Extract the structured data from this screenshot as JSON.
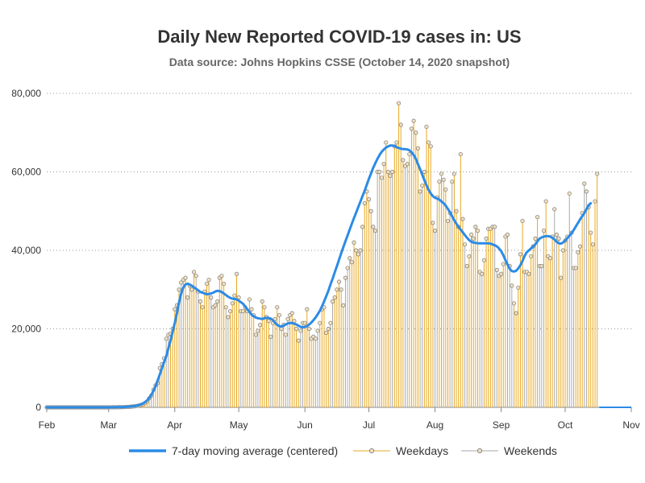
{
  "chart_data": {
    "type": "bar",
    "title": "Daily New Reported COVID-19 cases in: US",
    "subtitle": "Data source: Johns Hopkins CSSE (October 14, 2020 snapshot)",
    "xlabel": "",
    "ylabel": "",
    "start_date": "2020-01-22",
    "end_date": "2020-10-13",
    "xlim": [
      "2020-02-01",
      "2020-11-01"
    ],
    "ylim": [
      0,
      80000
    ],
    "y_ticks": [
      0,
      20000,
      40000,
      60000,
      80000
    ],
    "y_tick_labels": [
      "0",
      "20,000",
      "40,000",
      "60,000",
      "80,000"
    ],
    "x_ticks": [
      "2020-02-01",
      "2020-03-01",
      "2020-04-01",
      "2020-05-01",
      "2020-06-01",
      "2020-07-01",
      "2020-08-01",
      "2020-09-01",
      "2020-10-01",
      "2020-11-01"
    ],
    "x_tick_labels": [
      "Feb",
      "Mar",
      "Apr",
      "May",
      "Jun",
      "Jul",
      "Aug",
      "Sep",
      "Oct",
      "Nov"
    ],
    "grid": "horizontal dotted",
    "legend_position": "bottom",
    "colors": {
      "moving_average": "#2b8be6",
      "weekdays": "#e8a820",
      "weekends": "#aaaaaa",
      "marker_face": "#f4e2c0",
      "marker_edge": "#888888"
    },
    "series": [
      {
        "name": "7-day moving average (centered)",
        "type": "line"
      },
      {
        "name": "Weekdays",
        "type": "needle"
      },
      {
        "name": "Weekends",
        "type": "needle"
      }
    ],
    "daily_values": [
      0,
      0,
      0,
      0,
      0,
      0,
      0,
      0,
      0,
      0,
      0,
      0,
      0,
      0,
      0,
      0,
      0,
      0,
      0,
      0,
      0,
      0,
      0,
      0,
      0,
      0,
      0,
      0,
      0,
      0,
      0,
      0,
      0,
      0,
      0,
      0,
      0,
      0,
      0,
      0,
      10,
      20,
      30,
      20,
      50,
      50,
      60,
      100,
      120,
      150,
      200,
      250,
      350,
      450,
      600,
      800,
      1100,
      1500,
      2300,
      3000,
      4500,
      5600,
      6200,
      10000,
      11000,
      12500,
      17500,
      18500,
      18800,
      20000,
      25000,
      26000,
      30000,
      31800,
      32500,
      33000,
      28000,
      31000,
      30000,
      34500,
      33500,
      29500,
      27000,
      25500,
      29500,
      31500,
      32500,
      28000,
      25500,
      26000,
      27000,
      33000,
      33500,
      31500,
      25500,
      23000,
      24500,
      26500,
      28500,
      34000,
      28000,
      24500,
      24500,
      25500,
      24500,
      27500,
      25000,
      23500,
      18500,
      19500,
      21000,
      27000,
      25500,
      23000,
      22000,
      18000,
      21500,
      22500,
      25500,
      23500,
      20000,
      21000,
      18500,
      22500,
      23500,
      24000,
      22000,
      20000,
      17000,
      19500,
      21500,
      21500,
      25000,
      20000,
      17500,
      18000,
      17500,
      19500,
      21500,
      25000,
      25500,
      19000,
      20000,
      21500,
      27000,
      28000,
      30000,
      32000,
      30000,
      26000,
      33000,
      35500,
      38000,
      37000,
      42000,
      40000,
      39000,
      40000,
      46000,
      52000,
      55000,
      53000,
      50000,
      46000,
      45000,
      60000,
      60000,
      58500,
      62000,
      67500,
      60000,
      59000,
      60000,
      66500,
      67500,
      77500,
      72000,
      63000,
      61500,
      62000,
      64500,
      71000,
      73000,
      70000,
      66000,
      55000,
      56500,
      60000,
      71500,
      67500,
      66500,
      47000,
      45000,
      53500,
      57500,
      59500,
      58000,
      55500,
      47500,
      49500,
      57500,
      59500,
      50000,
      46000,
      64500,
      48000,
      41500,
      36000,
      38500,
      44000,
      43000,
      46000,
      45000,
      34500,
      34000,
      37500,
      43000,
      45500,
      45500,
      46000,
      46000,
      35000,
      33500,
      34000,
      36500,
      43500,
      44000,
      36000,
      31000,
      26500,
      24000,
      30500,
      39000,
      47500,
      34500,
      34500,
      34000,
      38500,
      41000,
      43000,
      48500,
      36000,
      36000,
      45000,
      52500,
      38500,
      38000,
      43500,
      50500,
      44000,
      43000,
      33000,
      40000,
      42500,
      43500,
      54500,
      44500,
      35500,
      35500,
      39500,
      41000,
      49500,
      57000,
      55000,
      51000,
      44500,
      41500,
      52500,
      59500
    ],
    "moving_average": [
      0,
      0,
      0,
      0,
      0,
      0,
      0,
      0,
      0,
      0,
      0,
      0,
      0,
      0,
      0,
      0,
      0,
      0,
      0,
      0,
      0,
      0,
      0,
      0,
      0,
      0,
      0,
      0,
      0,
      0,
      0,
      0,
      0,
      0,
      0,
      0,
      0,
      0,
      0,
      0,
      20,
      30,
      40,
      50,
      60,
      70,
      90,
      110,
      150,
      190,
      240,
      310,
      420,
      560,
      730,
      950,
      1300,
      1750,
      2400,
      3200,
      4200,
      5400,
      6900,
      8400,
      10000,
      11500,
      13000,
      15000,
      17000,
      19200,
      21500,
      24000,
      26800,
      29000,
      30500,
      31300,
      31500,
      31300,
      31000,
      30600,
      30200,
      29800,
      29400,
      29200,
      29000,
      28800,
      28900,
      29000,
      29200,
      29500,
      29700,
      29600,
      29400,
      29000,
      28600,
      28200,
      27900,
      27700,
      27600,
      27500,
      27200,
      26800,
      26400,
      25700,
      25000,
      24300,
      23600,
      23200,
      22900,
      22700,
      22600,
      22500,
      22700,
      22800,
      22800,
      22600,
      22200,
      21600,
      21000,
      20700,
      20600,
      20800,
      21100,
      21400,
      21500,
      21500,
      21300,
      21100,
      20800,
      20500,
      20400,
      20500,
      20700,
      21100,
      21600,
      22200,
      22900,
      23700,
      24600,
      25700,
      27000,
      28300,
      29700,
      31300,
      32800,
      34400,
      36000,
      37600,
      39200,
      40800,
      42300,
      43800,
      45300,
      46800,
      48200,
      49600,
      51000,
      52400,
      53800,
      55200,
      56700,
      58200,
      59600,
      61000,
      62200,
      63300,
      64300,
      65100,
      65700,
      66200,
      66500,
      66700,
      66700,
      66600,
      66300,
      66100,
      65900,
      65800,
      65800,
      65700,
      65500,
      65000,
      64300,
      63300,
      62000,
      60700,
      59300,
      57900,
      56600,
      55400,
      54500,
      53800,
      53400,
      53200,
      52900,
      52500,
      52000,
      51400,
      50600,
      49700,
      48700,
      47700,
      46800,
      46000,
      45300,
      44600,
      43900,
      43200,
      42600,
      42200,
      42000,
      41900,
      41800,
      41800,
      41800,
      41800,
      41800,
      41800,
      41700,
      41500,
      41300,
      41000,
      40500,
      39800,
      38800,
      37500,
      36400,
      35300,
      34700,
      34600,
      34800,
      35400,
      36200,
      37300,
      38600,
      39500,
      40000,
      40500,
      41000,
      41500,
      42300,
      43000,
      43300,
      43500,
      43600,
      43600,
      43500,
      43200,
      42800,
      42200,
      41800,
      41700,
      42000,
      42500,
      43100,
      43700,
      44400,
      45200,
      46100,
      47000,
      47900,
      48700,
      49500,
      50500,
      51500,
      52000
    ]
  },
  "legend": {
    "items": [
      {
        "name": "moving-average",
        "label": "7-day moving average (centered)"
      },
      {
        "name": "weekdays",
        "label": "Weekdays"
      },
      {
        "name": "weekends",
        "label": "Weekends"
      }
    ]
  }
}
